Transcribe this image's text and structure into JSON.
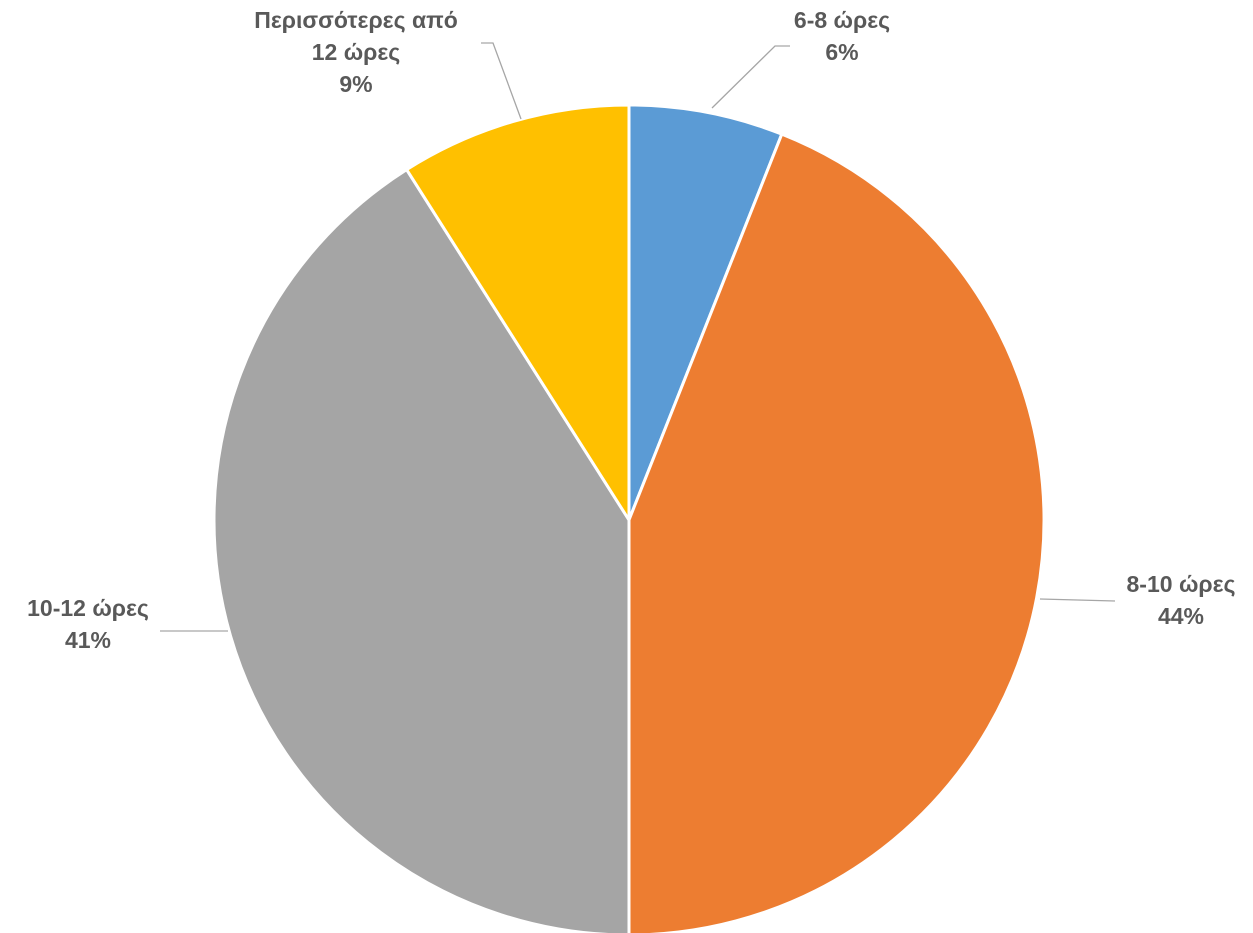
{
  "chart_data": {
    "type": "pie",
    "start_angle_deg": 0,
    "direction": "clockwise",
    "slices": [
      {
        "label_lines": [
          "6-8 ώρες"
        ],
        "percent_label": "6%",
        "value": 6,
        "color": "#5b9bd5"
      },
      {
        "label_lines": [
          "8-10 ώρες"
        ],
        "percent_label": "44%",
        "value": 44,
        "color": "#ed7d31"
      },
      {
        "label_lines": [
          "10-12 ώρες"
        ],
        "percent_label": "41%",
        "value": 41,
        "color": "#a5a5a5"
      },
      {
        "label_lines": [
          "Περισσότερες από",
          "12 ώρες"
        ],
        "percent_label": "9%",
        "value": 9,
        "color": "#ffc000"
      }
    ],
    "legend": "none"
  }
}
